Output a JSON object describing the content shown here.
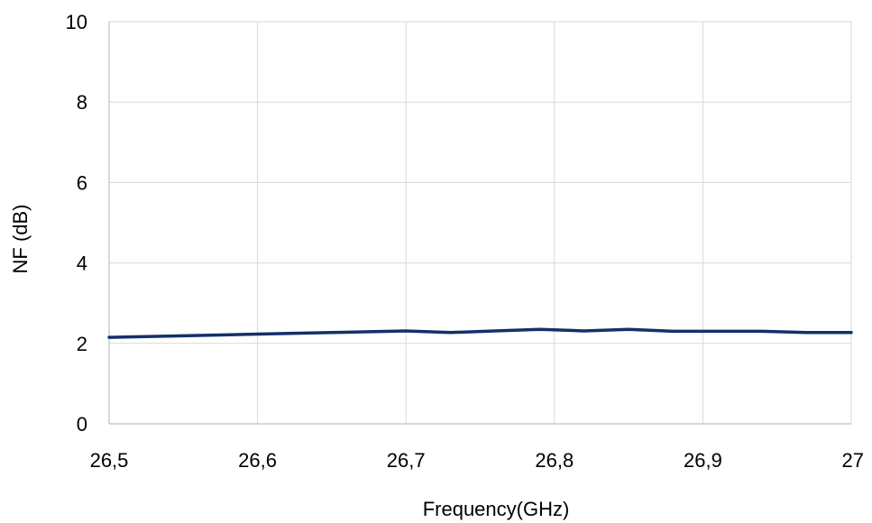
{
  "chart_data": {
    "type": "line",
    "xlabel": "Frequency(GHz)",
    "ylabel": "NF (dB)",
    "xlim": [
      26.5,
      27
    ],
    "ylim": [
      0,
      10
    ],
    "x_ticks": [
      26.5,
      26.6,
      26.7,
      26.8,
      26.9,
      27
    ],
    "x_tick_labels": [
      "26,5",
      "26,6",
      "26,7",
      "26,8",
      "26,9",
      "27"
    ],
    "y_ticks": [
      0,
      2,
      4,
      6,
      8,
      10
    ],
    "y_tick_labels": [
      "0",
      "2",
      "4",
      "6",
      "8",
      "10"
    ],
    "grid": true,
    "legend": "none",
    "series": [
      {
        "color": "#14306b",
        "x": [
          26.5,
          26.55,
          26.6,
          26.65,
          26.7,
          26.73,
          26.76,
          26.79,
          26.82,
          26.85,
          26.88,
          26.91,
          26.94,
          26.97,
          27.0
        ],
        "y": [
          2.15,
          2.19,
          2.23,
          2.27,
          2.31,
          2.27,
          2.31,
          2.35,
          2.31,
          2.35,
          2.3,
          2.3,
          2.3,
          2.27,
          2.27
        ]
      }
    ]
  }
}
